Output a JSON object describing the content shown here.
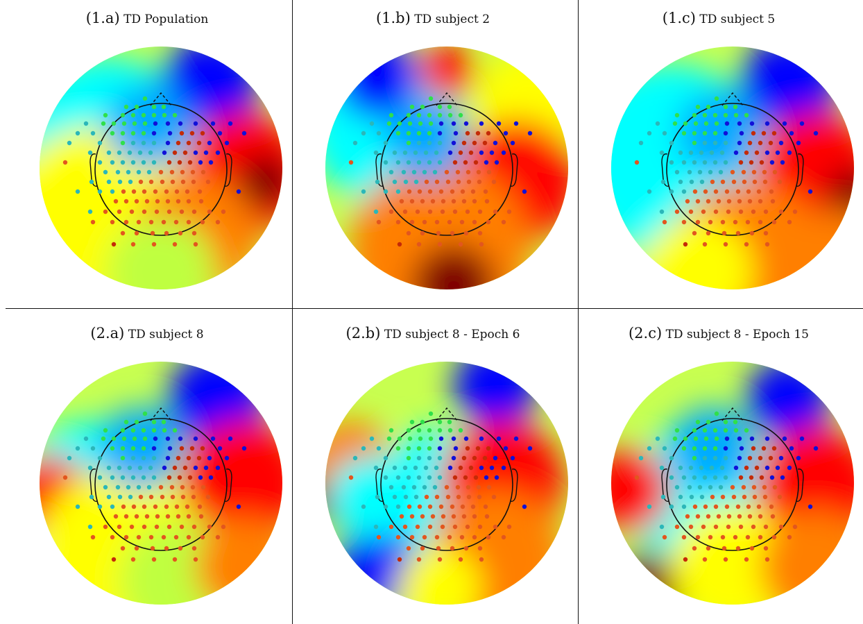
{
  "colors": {
    "background": "#ffffff",
    "divider": "#111111",
    "colormap": [
      "#00007f",
      "#0000ff",
      "#007fff",
      "#00ffff",
      "#7fff7f",
      "#ffff00",
      "#ff7f00",
      "#ff0000",
      "#7f0000"
    ],
    "electrode_clusters": {
      "green": "#22dd44",
      "cyan": "#22bbbb",
      "blue": "#1111dd",
      "orange": "#e0521a",
      "red": "#cc2200"
    }
  },
  "icons": [
    "head-outline-icon",
    "nose-icon",
    "ear-icon",
    "electrode-marker-icon"
  ],
  "panels": [
    {
      "label": "(1.a)",
      "title": "TD Population"
    },
    {
      "label": "(1.b)",
      "title": "TD subject 2"
    },
    {
      "label": "(1.c)",
      "title": "TD subject 5"
    },
    {
      "label": "(2.a)",
      "title": "TD subject 8"
    },
    {
      "label": "(2.b)",
      "title": "TD subject 8 - Epoch 6"
    },
    {
      "label": "(2.c)",
      "title": "TD subject 8 - Epoch 15"
    }
  ]
}
